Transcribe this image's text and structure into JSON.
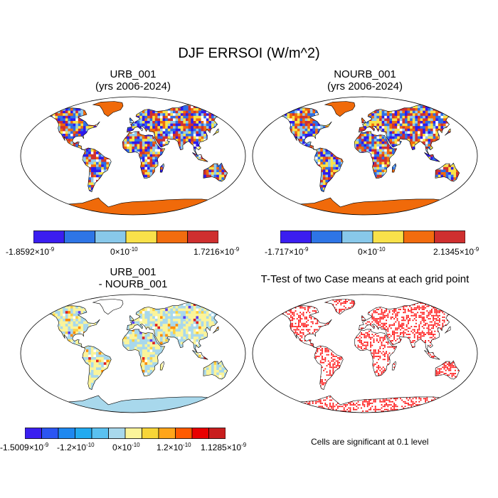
{
  "title": "DJF ERRSOI (W/m^2)",
  "colors": {
    "land": "#ffffff",
    "coast": "#000000",
    "sig": "#ff0000"
  },
  "panels": [
    {
      "id": "urb",
      "title_line1": "URB_001",
      "title_line2": "(yrs 2006-2024)",
      "antarctica_color": "#f06a0a",
      "greenland_color": "#f06a0a",
      "palette": [
        "#2e1aee",
        "#2d6ee8",
        "#8ec9ec",
        "#fbe346",
        "#f06a0a",
        "#d03030"
      ],
      "colorbar": {
        "colors": [
          "#3b1ef0",
          "#2e75e6",
          "#88c8ea",
          "#f9e14a",
          "#f26c0e",
          "#cf2f2f"
        ],
        "labels": [
          {
            "mant": "-1.8592×10",
            "exp": "-9"
          },
          {
            "mant": "0×10",
            "exp": "-10"
          },
          {
            "mant": "1.7216×10",
            "exp": "-9"
          }
        ]
      }
    },
    {
      "id": "nourb",
      "title_line1": "NOURB_001",
      "title_line2": "(yrs 2006-2024)",
      "antarctica_color": "#f06a0a",
      "greenland_color": "#f06a0a",
      "palette": [
        "#2e1aee",
        "#2d6ee8",
        "#8ec9ec",
        "#fbe346",
        "#f06a0a",
        "#d03030"
      ],
      "colorbar": {
        "colors": [
          "#3b1ef0",
          "#2e75e6",
          "#88c8ea",
          "#f9e14a",
          "#f26c0e",
          "#cf2f2f"
        ],
        "labels": [
          {
            "mant": "-1.717×10",
            "exp": "-9"
          },
          {
            "mant": "0×10",
            "exp": "-10"
          },
          {
            "mant": "2.1345×10",
            "exp": "-9"
          }
        ]
      }
    },
    {
      "id": "diff",
      "title_line1": "URB_001",
      "title_line2": "- NOURB_001",
      "antarctica_color": "#a8d8ec",
      "greenland_color": "#ffffff",
      "palette": [
        "#a8d8ec",
        "#fbf49a",
        "#a8d8ec",
        "#fbf49a",
        "#c8e6f0",
        "#fff3b0",
        "#ffd040",
        "#ff8c00",
        "#e02020",
        "#8a1030"
      ],
      "colorbar": {
        "colors": [
          "#3a1ff0",
          "#2b55f2",
          "#1e88f0",
          "#22aaf0",
          "#5ac1f0",
          "#a8d8ec",
          "#fbf49a",
          "#f8d538",
          "#ffa51a",
          "#ff5a00",
          "#e80000",
          "#c81e1e"
        ],
        "labels": [
          {
            "mant": "-1.5009×10",
            "exp": "-9"
          },
          {
            "mant": "-1.2×10",
            "exp": "-10"
          },
          {
            "mant": "0×10",
            "exp": "-10"
          },
          {
            "mant": "1.2×10",
            "exp": "-10"
          },
          {
            "mant": "1.1285×10",
            "exp": "-9"
          }
        ]
      }
    },
    {
      "id": "ttest",
      "title_line1": "T-Test of two Case means at each grid point",
      "title_line2": "",
      "note": "Cells are significant at 0.1 level"
    }
  ],
  "chart_data": [
    {
      "type": "heatmap",
      "title": "URB_001 (yrs 2006-2024)",
      "projection": "Robinson",
      "range": [
        -1.8592e-09,
        1.7216e-09
      ],
      "units": "W/m^2"
    },
    {
      "type": "heatmap",
      "title": "NOURB_001 (yrs 2006-2024)",
      "projection": "Robinson",
      "range": [
        -1.717e-09,
        2.1345e-09
      ],
      "units": "W/m^2"
    },
    {
      "type": "heatmap",
      "title": "URB_001 - NOURB_001",
      "projection": "Robinson",
      "range": [
        -1.5009e-09,
        1.1285e-09
      ],
      "units": "W/m^2"
    },
    {
      "type": "heatmap",
      "title": "T-Test of two Case means at each grid point",
      "projection": "Robinson",
      "significance_level": 0.1
    }
  ]
}
